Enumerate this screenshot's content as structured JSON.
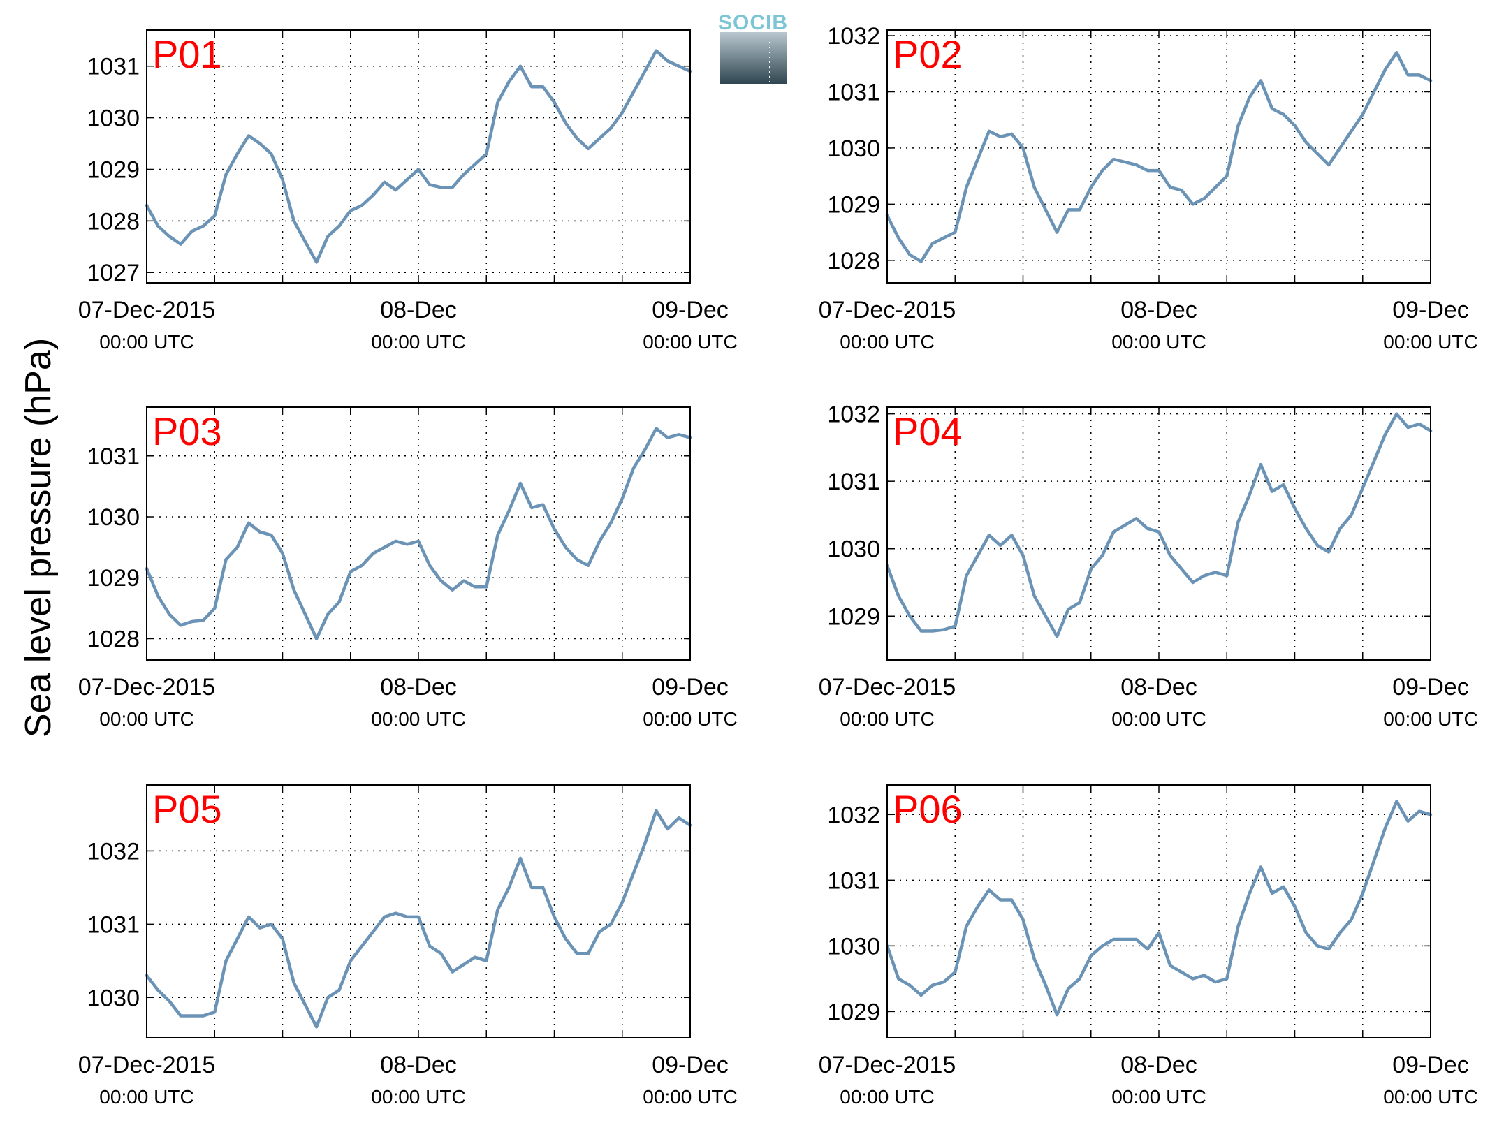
{
  "figure": {
    "ylabel": "Sea level pressure (hPa)",
    "line_color": "#6b93b6",
    "label_color": "#ff0000",
    "logo": {
      "text": "SOCIB",
      "color": "#7bc5d4",
      "gradient_top": "#b9c7cf",
      "gradient_bottom": "#2f4650"
    },
    "x_ticks": [
      {
        "main": "07-Dec-2015",
        "sub": "00:00 UTC"
      },
      {
        "main": "08-Dec",
        "sub": "00:00 UTC"
      },
      {
        "main": "09-Dec",
        "sub": "00:00 UTC"
      }
    ]
  },
  "chart_data": [
    {
      "type": "line",
      "label": "P01",
      "grid": true,
      "xlim": [
        0,
        48
      ],
      "ylim": [
        1026.8,
        1031.7
      ],
      "yticks": [
        1027,
        1028,
        1029,
        1030,
        1031
      ],
      "series": [
        {
          "x": [
            0,
            1,
            2,
            3,
            4,
            5,
            6,
            7,
            8,
            9,
            10,
            11,
            12,
            13,
            14,
            15,
            16,
            17,
            18,
            19,
            20,
            21,
            22,
            23,
            24,
            25,
            26,
            27,
            28,
            29,
            30,
            31,
            32,
            33,
            34,
            35,
            36,
            37,
            38,
            39,
            40,
            41,
            42,
            43,
            44,
            45,
            46,
            47,
            48
          ],
          "values": [
            1028.3,
            1027.9,
            1027.7,
            1027.55,
            1027.8,
            1027.9,
            1028.1,
            1028.9,
            1029.3,
            1029.65,
            1029.5,
            1029.3,
            1028.8,
            1028.0,
            1027.6,
            1027.2,
            1027.7,
            1027.9,
            1028.2,
            1028.3,
            1028.5,
            1028.75,
            1028.6,
            1028.8,
            1029.0,
            1028.7,
            1028.65,
            1028.65,
            1028.9,
            1029.1,
            1029.3,
            1030.3,
            1030.7,
            1031.0,
            1030.6,
            1030.6,
            1030.3,
            1029.9,
            1029.6,
            1029.4,
            1029.6,
            1029.8,
            1030.1,
            1030.5,
            1030.9,
            1031.3,
            1031.1,
            1031.0,
            1030.9
          ]
        }
      ]
    },
    {
      "type": "line",
      "label": "P02",
      "grid": true,
      "xlim": [
        0,
        48
      ],
      "ylim": [
        1027.6,
        1032.1
      ],
      "yticks": [
        1028,
        1029,
        1030,
        1031,
        1032
      ],
      "series": [
        {
          "x": [
            0,
            1,
            2,
            3,
            4,
            5,
            6,
            7,
            8,
            9,
            10,
            11,
            12,
            13,
            14,
            15,
            16,
            17,
            18,
            19,
            20,
            21,
            22,
            23,
            24,
            25,
            26,
            27,
            28,
            29,
            30,
            31,
            32,
            33,
            34,
            35,
            36,
            37,
            38,
            39,
            40,
            41,
            42,
            43,
            44,
            45,
            46,
            47,
            48
          ],
          "values": [
            1028.8,
            1028.4,
            1028.1,
            1027.98,
            1028.3,
            1028.4,
            1028.5,
            1029.3,
            1029.8,
            1030.3,
            1030.2,
            1030.25,
            1030.0,
            1029.3,
            1028.9,
            1028.5,
            1028.9,
            1028.9,
            1029.3,
            1029.6,
            1029.8,
            1029.75,
            1029.7,
            1029.6,
            1029.6,
            1029.3,
            1029.25,
            1029.0,
            1029.1,
            1029.3,
            1029.5,
            1030.4,
            1030.9,
            1031.2,
            1030.7,
            1030.6,
            1030.4,
            1030.1,
            1029.9,
            1029.7,
            1030.0,
            1030.3,
            1030.6,
            1031.0,
            1031.4,
            1031.7,
            1031.3,
            1031.3,
            1031.2
          ]
        }
      ]
    },
    {
      "type": "line",
      "label": "P03",
      "grid": true,
      "xlim": [
        0,
        48
      ],
      "ylim": [
        1027.65,
        1031.8
      ],
      "yticks": [
        1028,
        1029,
        1030,
        1031
      ],
      "series": [
        {
          "x": [
            0,
            1,
            2,
            3,
            4,
            5,
            6,
            7,
            8,
            9,
            10,
            11,
            12,
            13,
            14,
            15,
            16,
            17,
            18,
            19,
            20,
            21,
            22,
            23,
            24,
            25,
            26,
            27,
            28,
            29,
            30,
            31,
            32,
            33,
            34,
            35,
            36,
            37,
            38,
            39,
            40,
            41,
            42,
            43,
            44,
            45,
            46,
            47,
            48
          ],
          "values": [
            1029.15,
            1028.7,
            1028.4,
            1028.22,
            1028.28,
            1028.3,
            1028.5,
            1029.3,
            1029.5,
            1029.9,
            1029.75,
            1029.7,
            1029.4,
            1028.8,
            1028.4,
            1028.0,
            1028.4,
            1028.6,
            1029.1,
            1029.2,
            1029.4,
            1029.5,
            1029.6,
            1029.55,
            1029.6,
            1029.2,
            1028.95,
            1028.8,
            1028.95,
            1028.85,
            1028.85,
            1029.7,
            1030.1,
            1030.55,
            1030.15,
            1030.2,
            1029.8,
            1029.5,
            1029.3,
            1029.2,
            1029.6,
            1029.9,
            1030.3,
            1030.8,
            1031.1,
            1031.45,
            1031.3,
            1031.35,
            1031.3
          ]
        }
      ]
    },
    {
      "type": "line",
      "label": "P04",
      "grid": true,
      "xlim": [
        0,
        48
      ],
      "ylim": [
        1028.35,
        1032.1
      ],
      "yticks": [
        1029,
        1030,
        1031,
        1032
      ],
      "series": [
        {
          "x": [
            0,
            1,
            2,
            3,
            4,
            5,
            6,
            7,
            8,
            9,
            10,
            11,
            12,
            13,
            14,
            15,
            16,
            17,
            18,
            19,
            20,
            21,
            22,
            23,
            24,
            25,
            26,
            27,
            28,
            29,
            30,
            31,
            32,
            33,
            34,
            35,
            36,
            37,
            38,
            39,
            40,
            41,
            42,
            43,
            44,
            45,
            46,
            47,
            48
          ],
          "values": [
            1029.75,
            1029.3,
            1029.0,
            1028.78,
            1028.78,
            1028.8,
            1028.85,
            1029.6,
            1029.9,
            1030.2,
            1030.05,
            1030.2,
            1029.9,
            1029.3,
            1029.0,
            1028.7,
            1029.1,
            1029.2,
            1029.7,
            1029.9,
            1030.25,
            1030.35,
            1030.45,
            1030.3,
            1030.25,
            1029.9,
            1029.7,
            1029.5,
            1029.6,
            1029.65,
            1029.6,
            1030.4,
            1030.8,
            1031.25,
            1030.85,
            1030.95,
            1030.6,
            1030.3,
            1030.05,
            1029.95,
            1030.3,
            1030.5,
            1030.9,
            1031.3,
            1031.7,
            1032.0,
            1031.8,
            1031.85,
            1031.75
          ]
        }
      ]
    },
    {
      "type": "line",
      "label": "P05",
      "grid": true,
      "xlim": [
        0,
        48
      ],
      "ylim": [
        1029.45,
        1032.9
      ],
      "yticks": [
        1030,
        1031,
        1032
      ],
      "series": [
        {
          "x": [
            0,
            1,
            2,
            3,
            4,
            5,
            6,
            7,
            8,
            9,
            10,
            11,
            12,
            13,
            14,
            15,
            16,
            17,
            18,
            19,
            20,
            21,
            22,
            23,
            24,
            25,
            26,
            27,
            28,
            29,
            30,
            31,
            32,
            33,
            34,
            35,
            36,
            37,
            38,
            39,
            40,
            41,
            42,
            43,
            44,
            45,
            46,
            47,
            48
          ],
          "values": [
            1030.3,
            1030.1,
            1029.95,
            1029.75,
            1029.75,
            1029.75,
            1029.8,
            1030.5,
            1030.8,
            1031.1,
            1030.95,
            1031.0,
            1030.8,
            1030.2,
            1029.9,
            1029.6,
            1030.0,
            1030.1,
            1030.5,
            1030.7,
            1030.9,
            1031.1,
            1031.15,
            1031.1,
            1031.1,
            1030.7,
            1030.6,
            1030.35,
            1030.45,
            1030.55,
            1030.5,
            1031.2,
            1031.5,
            1031.9,
            1031.5,
            1031.5,
            1031.1,
            1030.8,
            1030.6,
            1030.6,
            1030.9,
            1031.0,
            1031.3,
            1031.7,
            1032.1,
            1032.55,
            1032.3,
            1032.45,
            1032.35
          ]
        }
      ]
    },
    {
      "type": "line",
      "label": "P06",
      "grid": true,
      "xlim": [
        0,
        48
      ],
      "ylim": [
        1028.6,
        1032.45
      ],
      "yticks": [
        1029,
        1030,
        1031,
        1032
      ],
      "series": [
        {
          "x": [
            0,
            1,
            2,
            3,
            4,
            5,
            6,
            7,
            8,
            9,
            10,
            11,
            12,
            13,
            14,
            15,
            16,
            17,
            18,
            19,
            20,
            21,
            22,
            23,
            24,
            25,
            26,
            27,
            28,
            29,
            30,
            31,
            32,
            33,
            34,
            35,
            36,
            37,
            38,
            39,
            40,
            41,
            42,
            43,
            44,
            45,
            46,
            47,
            48
          ],
          "values": [
            1030.0,
            1029.5,
            1029.4,
            1029.25,
            1029.4,
            1029.45,
            1029.6,
            1030.3,
            1030.6,
            1030.85,
            1030.7,
            1030.7,
            1030.4,
            1029.8,
            1029.4,
            1028.95,
            1029.35,
            1029.5,
            1029.85,
            1030.0,
            1030.1,
            1030.1,
            1030.1,
            1029.95,
            1030.2,
            1029.7,
            1029.6,
            1029.5,
            1029.55,
            1029.45,
            1029.5,
            1030.3,
            1030.8,
            1031.2,
            1030.8,
            1030.9,
            1030.6,
            1030.2,
            1030.0,
            1029.95,
            1030.2,
            1030.4,
            1030.8,
            1031.3,
            1031.8,
            1032.2,
            1031.9,
            1032.05,
            1032.0
          ]
        }
      ]
    }
  ]
}
